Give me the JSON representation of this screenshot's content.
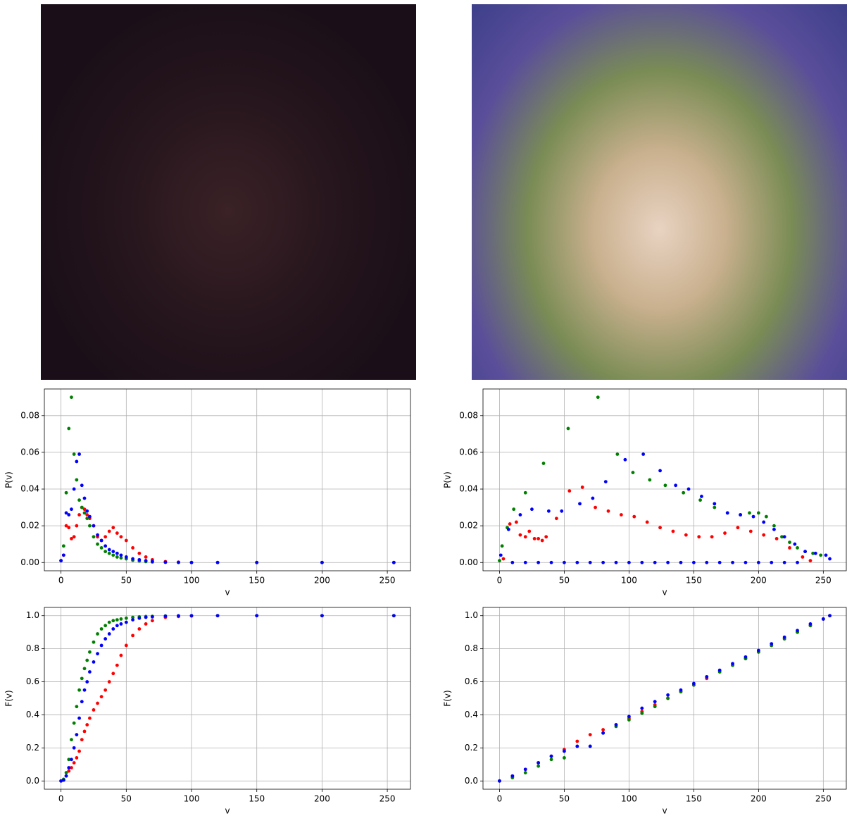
{
  "chart_data": [
    {
      "type": "scatter",
      "xlabel": "v",
      "ylabel": "P(v)",
      "grid": true,
      "xlim": [
        -12.75,
        267.75
      ],
      "ylim": [
        -0.0045,
        0.0945
      ],
      "xticks": [
        0,
        50,
        100,
        150,
        200,
        250
      ],
      "yticks": [
        {
          "value": 0,
          "label": "0.00"
        },
        {
          "value": 0.02,
          "label": "0.02"
        },
        {
          "value": 0.04,
          "label": "0.04"
        },
        {
          "value": 0.06,
          "label": "0.06"
        },
        {
          "value": 0.08,
          "label": "0.08"
        }
      ],
      "series": [
        {
          "color": "#ff0000",
          "x": [
            0,
            2,
            4,
            6,
            8,
            10,
            12,
            14,
            16,
            18,
            20,
            22,
            25,
            28,
            31,
            34,
            37,
            40,
            43,
            46,
            50,
            55,
            60,
            65,
            70,
            80,
            90,
            100,
            120,
            150,
            200,
            255
          ],
          "values": [
            0.001,
            0.004,
            0.02,
            0.019,
            0.013,
            0.014,
            0.02,
            0.026,
            0.03,
            0.029,
            0.026,
            0.024,
            0.02,
            0.014,
            0.012,
            0.014,
            0.017,
            0.019,
            0.016,
            0.014,
            0.012,
            0.008,
            0.005,
            0.003,
            0.0015,
            0.0005,
            0.0002,
            0,
            0,
            0,
            0,
            0
          ]
        },
        {
          "color": "#008000",
          "x": [
            0,
            2,
            4,
            6,
            8,
            10,
            12,
            14,
            16,
            18,
            20,
            22,
            25,
            28,
            31,
            34,
            37,
            40,
            43,
            46,
            50,
            55,
            60,
            65,
            70,
            80,
            90,
            100,
            120,
            150,
            200,
            255
          ],
          "values": [
            0.001,
            0.009,
            0.038,
            0.073,
            0.09,
            0.059,
            0.045,
            0.034,
            0.03,
            0.027,
            0.024,
            0.02,
            0.014,
            0.01,
            0.008,
            0.006,
            0.005,
            0.004,
            0.003,
            0.0025,
            0.002,
            0.0012,
            0.0008,
            0.0005,
            0.0003,
            0.0001,
            0,
            0,
            0,
            0,
            0,
            0
          ]
        },
        {
          "color": "#0000ff",
          "x": [
            0,
            2,
            4,
            6,
            8,
            10,
            12,
            14,
            16,
            18,
            20,
            22,
            25,
            28,
            31,
            34,
            37,
            40,
            43,
            46,
            50,
            55,
            60,
            65,
            70,
            80,
            90,
            100,
            120,
            150,
            200,
            255
          ],
          "values": [
            0.001,
            0.004,
            0.027,
            0.026,
            0.029,
            0.04,
            0.055,
            0.059,
            0.042,
            0.035,
            0.028,
            0.025,
            0.02,
            0.015,
            0.012,
            0.009,
            0.007,
            0.006,
            0.005,
            0.004,
            0.003,
            0.002,
            0.0015,
            0.001,
            0.0006,
            0.0002,
            0.0001,
            0,
            0,
            0,
            0,
            0
          ]
        }
      ]
    },
    {
      "type": "scatter",
      "xlabel": "v",
      "ylabel": "P(v)",
      "grid": true,
      "xlim": [
        -12.75,
        267.75
      ],
      "ylim": [
        -0.0045,
        0.0945
      ],
      "xticks": [
        0,
        50,
        100,
        150,
        200,
        250
      ],
      "yticks": [
        {
          "value": 0,
          "label": "0.00"
        },
        {
          "value": 0.02,
          "label": "0.02"
        },
        {
          "value": 0.04,
          "label": "0.04"
        },
        {
          "value": 0.06,
          "label": "0.06"
        },
        {
          "value": 0.08,
          "label": "0.08"
        }
      ],
      "series": [
        {
          "color": "#ff0000",
          "x": [
            3,
            8,
            13,
            16,
            20,
            23,
            27,
            30,
            33,
            36,
            44,
            54,
            64,
            74,
            84,
            94,
            104,
            114,
            124,
            134,
            144,
            154,
            164,
            174,
            184,
            194,
            204,
            214,
            224,
            234,
            240
          ],
          "values": [
            0.002,
            0.021,
            0.022,
            0.015,
            0.014,
            0.017,
            0.013,
            0.013,
            0.012,
            0.014,
            0.024,
            0.039,
            0.041,
            0.03,
            0.028,
            0.026,
            0.025,
            0.022,
            0.019,
            0.017,
            0.015,
            0.014,
            0.014,
            0.016,
            0.019,
            0.017,
            0.015,
            0.013,
            0.008,
            0.003,
            0.001
          ]
        },
        {
          "color": "#008000",
          "x": [
            0,
            2,
            6,
            11,
            20,
            34,
            53,
            76,
            91,
            103,
            116,
            128,
            142,
            155,
            166,
            176,
            186,
            193,
            200,
            206,
            212,
            218,
            224,
            230,
            236,
            242,
            248
          ],
          "values": [
            0.001,
            0.009,
            0.019,
            0.029,
            0.038,
            0.054,
            0.073,
            0.09,
            0.059,
            0.049,
            0.045,
            0.042,
            0.038,
            0.034,
            0.03,
            0.027,
            0.026,
            0.027,
            0.027,
            0.025,
            0.02,
            0.014,
            0.011,
            0.008,
            0.006,
            0.005,
            0.004
          ]
        },
        {
          "color": "#0000ff",
          "x": [
            1,
            7,
            16,
            25,
            38,
            48,
            62,
            72,
            82,
            97,
            111,
            124,
            136,
            146,
            156,
            166,
            176,
            186,
            196,
            204,
            212,
            220,
            228,
            236,
            244,
            252,
            255,
            10,
            20,
            30,
            40,
            50,
            60,
            70,
            80,
            90,
            100,
            110,
            120,
            130,
            140,
            150,
            160,
            170,
            180,
            190,
            200,
            210,
            220,
            230
          ],
          "values": [
            0.004,
            0.018,
            0.026,
            0.029,
            0.028,
            0.028,
            0.032,
            0.035,
            0.044,
            0.056,
            0.059,
            0.05,
            0.042,
            0.04,
            0.036,
            0.032,
            0.027,
            0.026,
            0.025,
            0.022,
            0.018,
            0.014,
            0.01,
            0.006,
            0.005,
            0.004,
            0.002,
            0,
            0,
            0,
            0,
            0,
            0,
            0,
            0,
            0,
            0,
            0,
            0,
            0,
            0,
            0,
            0,
            0,
            0,
            0,
            0,
            0,
            0,
            0
          ]
        }
      ]
    },
    {
      "type": "scatter",
      "xlabel": "v",
      "ylabel": "F(v)",
      "grid": true,
      "xlim": [
        -12.75,
        267.75
      ],
      "ylim": [
        -0.05,
        1.05
      ],
      "xticks": [
        0,
        50,
        100,
        150,
        200,
        250
      ],
      "yticks": [
        {
          "value": 0,
          "label": "0.0"
        },
        {
          "value": 0.2,
          "label": "0.2"
        },
        {
          "value": 0.4,
          "label": "0.4"
        },
        {
          "value": 0.6,
          "label": "0.6"
        },
        {
          "value": 0.8,
          "label": "0.8"
        },
        {
          "value": 1,
          "label": "1.0"
        }
      ],
      "series": [
        {
          "color": "#ff0000",
          "x": [
            0,
            2,
            4,
            6,
            8,
            10,
            12,
            14,
            16,
            18,
            20,
            22,
            25,
            28,
            31,
            34,
            37,
            40,
            43,
            46,
            50,
            55,
            60,
            65,
            70,
            80,
            90,
            100,
            120,
            150,
            200,
            255
          ],
          "values": [
            0,
            0.005,
            0.03,
            0.06,
            0.08,
            0.11,
            0.14,
            0.18,
            0.25,
            0.3,
            0.34,
            0.38,
            0.43,
            0.47,
            0.51,
            0.55,
            0.6,
            0.65,
            0.7,
            0.76,
            0.82,
            0.88,
            0.92,
            0.95,
            0.97,
            0.99,
            0.995,
            0.998,
            1,
            1,
            1,
            1
          ]
        },
        {
          "color": "#008000",
          "x": [
            0,
            2,
            4,
            6,
            8,
            10,
            12,
            14,
            16,
            18,
            20,
            22,
            25,
            28,
            31,
            34,
            37,
            40,
            43,
            46,
            50,
            55,
            60,
            65,
            70,
            80,
            90,
            100,
            120,
            150,
            200,
            255
          ],
          "values": [
            0,
            0.01,
            0.05,
            0.13,
            0.25,
            0.35,
            0.45,
            0.55,
            0.62,
            0.68,
            0.73,
            0.78,
            0.84,
            0.89,
            0.92,
            0.94,
            0.96,
            0.97,
            0.975,
            0.98,
            0.985,
            0.99,
            0.993,
            0.995,
            0.996,
            0.998,
            0.999,
            1,
            1,
            1,
            1,
            1
          ]
        },
        {
          "color": "#0000ff",
          "x": [
            0,
            2,
            4,
            6,
            8,
            10,
            12,
            14,
            16,
            18,
            20,
            22,
            25,
            28,
            31,
            34,
            37,
            40,
            43,
            46,
            50,
            55,
            60,
            65,
            70,
            80,
            90,
            100,
            120,
            150,
            200,
            255
          ],
          "values": [
            0,
            0.005,
            0.03,
            0.08,
            0.13,
            0.2,
            0.28,
            0.38,
            0.48,
            0.55,
            0.6,
            0.66,
            0.72,
            0.77,
            0.82,
            0.86,
            0.89,
            0.92,
            0.94,
            0.95,
            0.96,
            0.975,
            0.985,
            0.99,
            0.993,
            0.997,
            0.999,
            1,
            1,
            1,
            1,
            1
          ]
        }
      ]
    },
    {
      "type": "scatter",
      "xlabel": "v",
      "ylabel": "F(v)",
      "grid": true,
      "xlim": [
        -12.75,
        267.75
      ],
      "ylim": [
        -0.05,
        1.05
      ],
      "xticks": [
        0,
        50,
        100,
        150,
        200,
        250
      ],
      "yticks": [
        {
          "value": 0,
          "label": "0.0"
        },
        {
          "value": 0.2,
          "label": "0.2"
        },
        {
          "value": 0.4,
          "label": "0.4"
        },
        {
          "value": 0.6,
          "label": "0.6"
        },
        {
          "value": 0.8,
          "label": "0.8"
        },
        {
          "value": 1,
          "label": "1.0"
        }
      ],
      "series": [
        {
          "color": "#ff0000",
          "x": [
            0,
            10,
            20,
            30,
            40,
            50,
            60,
            70,
            80,
            90,
            100,
            110,
            120,
            130,
            140,
            150,
            160,
            170,
            180,
            190,
            200,
            210,
            220,
            230,
            240,
            250,
            255
          ],
          "values": [
            0,
            0.03,
            0.07,
            0.11,
            0.15,
            0.19,
            0.24,
            0.28,
            0.31,
            0.34,
            0.38,
            0.42,
            0.46,
            0.5,
            0.54,
            0.58,
            0.62,
            0.66,
            0.7,
            0.74,
            0.78,
            0.82,
            0.86,
            0.9,
            0.94,
            0.98,
            1
          ]
        },
        {
          "color": "#008000",
          "x": [
            0,
            10,
            20,
            30,
            40,
            50,
            60,
            70,
            80,
            90,
            100,
            110,
            120,
            130,
            140,
            150,
            160,
            170,
            180,
            190,
            200,
            210,
            220,
            230,
            240,
            250,
            255
          ],
          "values": [
            0,
            0.02,
            0.05,
            0.09,
            0.13,
            0.14,
            0.21,
            0.21,
            0.29,
            0.33,
            0.37,
            0.41,
            0.45,
            0.5,
            0.54,
            0.58,
            0.63,
            0.66,
            0.7,
            0.74,
            0.78,
            0.82,
            0.86,
            0.9,
            0.94,
            0.98,
            1
          ]
        },
        {
          "color": "#0000ff",
          "x": [
            0,
            10,
            20,
            30,
            40,
            50,
            60,
            70,
            80,
            90,
            100,
            110,
            120,
            130,
            140,
            150,
            160,
            170,
            180,
            190,
            200,
            210,
            220,
            230,
            240,
            250,
            255
          ],
          "values": [
            0,
            0.03,
            0.07,
            0.11,
            0.15,
            0.18,
            0.21,
            0.21,
            0.29,
            0.34,
            0.39,
            0.44,
            0.48,
            0.52,
            0.55,
            0.59,
            0.63,
            0.67,
            0.71,
            0.75,
            0.79,
            0.83,
            0.87,
            0.91,
            0.95,
            0.98,
            1
          ]
        }
      ]
    }
  ]
}
